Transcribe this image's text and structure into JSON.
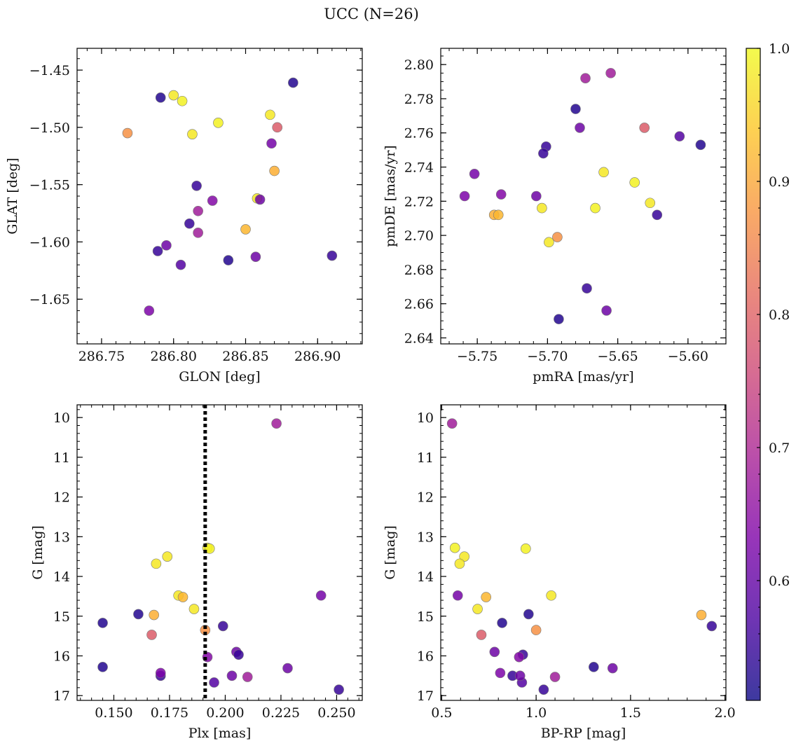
{
  "title": "UCC (N=26)",
  "chart_data": {
    "type": "scatter",
    "title": "UCC (N=26)",
    "colormap": "plasma",
    "colorbar": {
      "range": [
        0.51,
        1.0
      ],
      "ticks": [
        0.6,
        0.7,
        0.8,
        0.9,
        1.0
      ],
      "tick_labels": [
        "0.6",
        "0.7",
        "0.8",
        "0.9",
        "1.0"
      ]
    },
    "stars": [
      {
        "glon": 286.791,
        "glat": -1.474,
        "pmra": -5.68,
        "pmde": 2.774,
        "plx": 0.161,
        "g": 14.95,
        "bprp": 0.96,
        "p": 0.53
      },
      {
        "glon": 286.8,
        "glat": -1.472,
        "pmra": -5.66,
        "pmde": 2.737,
        "plx": 0.174,
        "g": 13.5,
        "bprp": 0.62,
        "p": 0.98
      },
      {
        "glon": 286.806,
        "glat": -1.477,
        "pmra": -5.638,
        "pmde": 2.731,
        "plx": 0.192,
        "g": 13.28,
        "bprp": 0.57,
        "p": 0.99
      },
      {
        "glon": 286.768,
        "glat": -1.505,
        "pmra": -5.693,
        "pmde": 2.699,
        "plx": 0.191,
        "g": 15.35,
        "bprp": 1.0,
        "p": 0.87
      },
      {
        "glon": 286.813,
        "glat": -1.506,
        "pmra": -5.627,
        "pmde": 2.719,
        "plx": 0.169,
        "g": 13.68,
        "bprp": 0.595,
        "p": 0.98
      },
      {
        "glon": 286.831,
        "glat": -1.496,
        "pmra": -5.666,
        "pmde": 2.716,
        "plx": 0.193,
        "g": 13.3,
        "bprp": 0.945,
        "p": 0.99
      },
      {
        "glon": 286.867,
        "glat": -1.489,
        "pmra": -5.699,
        "pmde": 2.696,
        "plx": 0.179,
        "g": 14.48,
        "bprp": 1.08,
        "p": 0.98
      },
      {
        "glon": 286.883,
        "glat": -1.461,
        "pmra": -5.591,
        "pmde": 2.753,
        "plx": 0.145,
        "g": 16.28,
        "bprp": 1.305,
        "p": 0.53
      },
      {
        "glon": 286.872,
        "glat": -1.5,
        "pmra": -5.631,
        "pmde": 2.763,
        "plx": 0.167,
        "g": 15.47,
        "bprp": 0.71,
        "p": 0.79
      },
      {
        "glon": 286.868,
        "glat": -1.514,
        "pmra": -5.752,
        "pmde": 2.736,
        "plx": 0.243,
        "g": 14.48,
        "bprp": 0.585,
        "p": 0.62
      },
      {
        "glon": 286.87,
        "glat": -1.538,
        "pmra": -5.738,
        "pmde": 2.712,
        "plx": 0.168,
        "g": 14.97,
        "bprp": 1.875,
        "p": 0.91
      },
      {
        "glon": 286.858,
        "glat": -1.562,
        "pmra": -5.704,
        "pmde": 2.716,
        "plx": 0.186,
        "g": 14.82,
        "bprp": 0.69,
        "p": 0.98
      },
      {
        "glon": 286.86,
        "glat": -1.563,
        "pmra": -5.677,
        "pmde": 2.763,
        "plx": 0.205,
        "g": 15.9,
        "bprp": 0.78,
        "p": 0.61
      },
      {
        "glon": 286.816,
        "glat": -1.551,
        "pmra": -5.701,
        "pmde": 2.752,
        "plx": 0.206,
        "g": 15.97,
        "bprp": 0.93,
        "p": 0.55
      },
      {
        "glon": 286.827,
        "glat": -1.564,
        "pmra": -5.733,
        "pmde": 2.724,
        "plx": 0.192,
        "g": 16.03,
        "bprp": 0.91,
        "p": 0.64
      },
      {
        "glon": 286.817,
        "glat": -1.573,
        "pmra": -5.673,
        "pmde": 2.792,
        "plx": 0.21,
        "g": 16.53,
        "bprp": 1.1,
        "p": 0.68
      },
      {
        "glon": 286.817,
        "glat": -1.592,
        "pmra": -5.655,
        "pmde": 2.795,
        "plx": 0.223,
        "g": 10.15,
        "bprp": 0.555,
        "p": 0.68
      },
      {
        "glon": 286.811,
        "glat": -1.584,
        "pmra": -5.703,
        "pmde": 2.748,
        "plx": 0.199,
        "g": 15.25,
        "bprp": 1.93,
        "p": 0.55
      },
      {
        "glon": 286.85,
        "glat": -1.589,
        "pmra": -5.735,
        "pmde": 2.712,
        "plx": 0.181,
        "g": 14.52,
        "bprp": 0.735,
        "p": 0.92
      },
      {
        "glon": 286.795,
        "glat": -1.603,
        "pmra": -5.708,
        "pmde": 2.723,
        "plx": 0.228,
        "g": 16.31,
        "bprp": 1.405,
        "p": 0.61
      },
      {
        "glon": 286.789,
        "glat": -1.608,
        "pmra": -5.622,
        "pmde": 2.712,
        "plx": 0.171,
        "g": 16.5,
        "bprp": 0.875,
        "p": 0.55
      },
      {
        "glon": 286.805,
        "glat": -1.62,
        "pmra": -5.606,
        "pmde": 2.758,
        "plx": 0.195,
        "g": 16.67,
        "bprp": 0.925,
        "p": 0.58
      },
      {
        "glon": 286.838,
        "glat": -1.616,
        "pmra": -5.692,
        "pmde": 2.651,
        "plx": 0.145,
        "g": 15.17,
        "bprp": 0.82,
        "p": 0.53
      },
      {
        "glon": 286.857,
        "glat": -1.613,
        "pmra": -5.658,
        "pmde": 2.656,
        "plx": 0.203,
        "g": 16.5,
        "bprp": 0.915,
        "p": 0.61
      },
      {
        "glon": 286.91,
        "glat": -1.612,
        "pmra": -5.672,
        "pmde": 2.669,
        "plx": 0.251,
        "g": 16.85,
        "bprp": 1.04,
        "p": 0.55
      },
      {
        "glon": 286.783,
        "glat": -1.66,
        "pmra": -5.759,
        "pmde": 2.723,
        "plx": 0.171,
        "g": 16.43,
        "bprp": 0.81,
        "p": 0.63
      }
    ],
    "plx_median": 0.191,
    "panels": [
      {
        "id": "glon-glat",
        "x": "glon",
        "y": "glat",
        "xlabel": "GLON [deg]",
        "ylabel": "GLAT [deg]",
        "xlim": [
          286.733,
          286.931
        ],
        "ylim": [
          -1.689,
          -1.431
        ],
        "xticks": [
          286.75,
          286.8,
          286.85,
          286.9
        ],
        "xtick_labels": [
          "286.75",
          "286.80",
          "286.85",
          "286.90"
        ],
        "yticks": [
          -1.45,
          -1.5,
          -1.55,
          -1.6,
          -1.65
        ],
        "ytick_labels": [
          "−1.45",
          "−1.50",
          "−1.55",
          "−1.60",
          "−1.65"
        ],
        "xminor": 0.01,
        "yminor": 0.01,
        "invert_y": false,
        "vline": null
      },
      {
        "id": "pmra-pmde",
        "x": "pmra",
        "y": "pmde",
        "xlabel": "pmRA [mas/yr]",
        "ylabel": "pmDE [mas/yr]",
        "xlim": [
          -5.776,
          -5.573
        ],
        "ylim": [
          2.6365,
          2.8095
        ],
        "xticks": [
          -5.75,
          -5.7,
          -5.65,
          -5.6
        ],
        "xtick_labels": [
          "−5.75",
          "−5.70",
          "−5.65",
          "−5.60"
        ],
        "yticks": [
          2.64,
          2.66,
          2.68,
          2.7,
          2.72,
          2.74,
          2.76,
          2.78,
          2.8
        ],
        "ytick_labels": [
          "2.64",
          "2.66",
          "2.68",
          "2.70",
          "2.72",
          "2.74",
          "2.76",
          "2.78",
          "2.80"
        ],
        "xminor": 0.01,
        "yminor": 0.005,
        "invert_y": false,
        "vline": null
      },
      {
        "id": "plx-g",
        "x": "plx",
        "y": "g",
        "xlabel": "Plx [mas]",
        "ylabel": "G [mag]",
        "xlim": [
          0.1335,
          0.2615
        ],
        "ylim": [
          9.68,
          17.12
        ],
        "xticks": [
          0.15,
          0.175,
          0.2,
          0.225,
          0.25
        ],
        "xtick_labels": [
          "0.150",
          "0.175",
          "0.200",
          "0.225",
          "0.250"
        ],
        "yticks": [
          10,
          11,
          12,
          13,
          14,
          15,
          16,
          17
        ],
        "ytick_labels": [
          "10",
          "11",
          "12",
          "13",
          "14",
          "15",
          "16",
          "17"
        ],
        "xminor": 0.005,
        "yminor": 0.2,
        "invert_y": true,
        "vline": "plx_median"
      },
      {
        "id": "bprp-g",
        "x": "bprp",
        "y": "g",
        "xlabel": "BP-RP [mag]",
        "ylabel": "G [mag]",
        "xlim": [
          0.495,
          2.005
        ],
        "ylim": [
          9.68,
          17.12
        ],
        "xticks": [
          0.5,
          1.0,
          1.5,
          2.0
        ],
        "xtick_labels": [
          "0.5",
          "1.0",
          "1.5",
          "2.0"
        ],
        "yticks": [
          10,
          11,
          12,
          13,
          14,
          15,
          16,
          17
        ],
        "ytick_labels": [
          "10",
          "11",
          "12",
          "13",
          "14",
          "15",
          "16",
          "17"
        ],
        "xminor": 0.1,
        "yminor": 0.2,
        "invert_y": true,
        "vline": null
      }
    ]
  }
}
